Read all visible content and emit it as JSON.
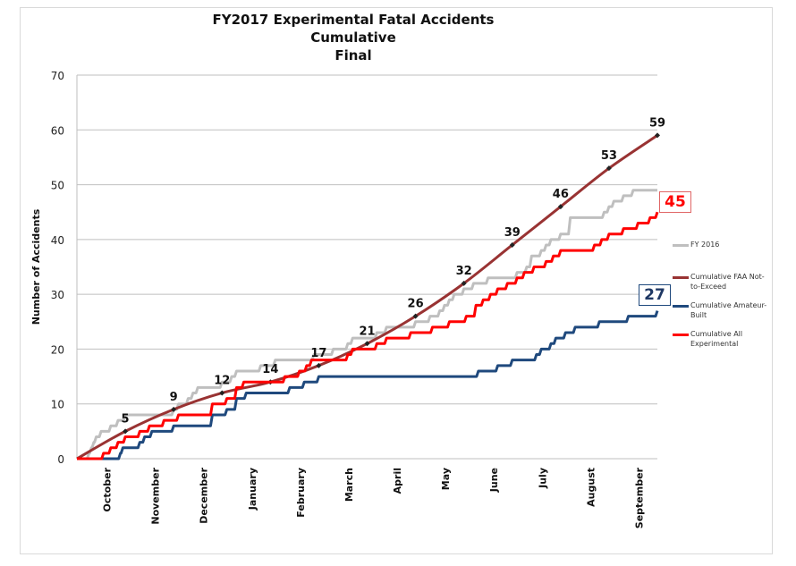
{
  "chart_data": {
    "type": "line",
    "title": [
      "FY2017 Experimental Fatal Accidents",
      "Cumulative",
      "Final"
    ],
    "xlabel": "",
    "ylabel": "Number of Accidents",
    "ylim": [
      0,
      70
    ],
    "yticks": [
      0,
      10,
      20,
      30,
      40,
      50,
      60,
      70
    ],
    "xlim_months": [
      0,
      12
    ],
    "categories": [
      "October",
      "November",
      "December",
      "January",
      "February",
      "March",
      "April",
      "May",
      "June",
      "July",
      "August",
      "September"
    ],
    "grid": "horizontal",
    "legend_position": "right",
    "series": [
      {
        "name": "FY 2016",
        "color": "#bfbfbf",
        "style": "step",
        "points": [
          [
            0,
            0
          ],
          [
            0.25,
            1
          ],
          [
            0.3,
            2
          ],
          [
            0.35,
            3
          ],
          [
            0.4,
            4
          ],
          [
            0.5,
            5
          ],
          [
            0.7,
            6
          ],
          [
            0.85,
            7
          ],
          [
            1.0,
            8
          ],
          [
            1.9,
            8
          ],
          [
            2.0,
            9
          ],
          [
            2.1,
            10
          ],
          [
            2.3,
            11
          ],
          [
            2.4,
            12
          ],
          [
            2.5,
            13
          ],
          [
            3.0,
            14
          ],
          [
            3.2,
            15
          ],
          [
            3.3,
            16
          ],
          [
            3.8,
            17
          ],
          [
            4.1,
            18
          ],
          [
            4.9,
            19
          ],
          [
            5.3,
            20
          ],
          [
            5.6,
            21
          ],
          [
            5.7,
            22
          ],
          [
            6.2,
            23
          ],
          [
            6.4,
            24
          ],
          [
            7.0,
            25
          ],
          [
            7.3,
            26
          ],
          [
            7.5,
            27
          ],
          [
            7.6,
            28
          ],
          [
            7.7,
            29
          ],
          [
            7.8,
            30
          ],
          [
            8.0,
            31
          ],
          [
            8.2,
            32
          ],
          [
            8.5,
            33
          ],
          [
            9.1,
            34
          ],
          [
            9.3,
            35
          ],
          [
            9.4,
            37
          ],
          [
            9.6,
            38
          ],
          [
            9.7,
            39
          ],
          [
            9.8,
            40
          ],
          [
            10.0,
            41
          ],
          [
            10.2,
            44
          ],
          [
            10.9,
            45
          ],
          [
            11.0,
            46
          ],
          [
            11.1,
            47
          ],
          [
            11.3,
            48
          ],
          [
            11.5,
            49
          ],
          [
            12.0,
            49
          ]
        ]
      },
      {
        "name": "Cumulative FAA Not-to-Exceed",
        "color": "#993333",
        "style": "line",
        "markers": true,
        "points": [
          [
            0,
            0
          ],
          [
            1,
            5
          ],
          [
            2,
            9
          ],
          [
            3,
            12
          ],
          [
            4,
            14
          ],
          [
            5,
            17
          ],
          [
            6,
            21
          ],
          [
            7,
            26
          ],
          [
            8,
            32
          ],
          [
            9,
            39
          ],
          [
            10,
            46
          ],
          [
            11,
            53
          ],
          [
            12,
            59
          ]
        ],
        "data_labels": [
          "5",
          "9",
          "12",
          "14",
          "17",
          "21",
          "26",
          "32",
          "39",
          "46",
          "53",
          "59"
        ]
      },
      {
        "name": "Cumulative Amateur-Built",
        "color": "#1f497d",
        "style": "step",
        "points": [
          [
            0,
            0
          ],
          [
            0.9,
            1
          ],
          [
            0.95,
            2
          ],
          [
            1.3,
            3
          ],
          [
            1.4,
            4
          ],
          [
            1.55,
            5
          ],
          [
            2.0,
            6
          ],
          [
            2.8,
            8
          ],
          [
            3.1,
            9
          ],
          [
            3.3,
            11
          ],
          [
            3.5,
            12
          ],
          [
            4.4,
            13
          ],
          [
            4.7,
            14
          ],
          [
            5.0,
            15
          ],
          [
            8.3,
            16
          ],
          [
            8.7,
            17
          ],
          [
            9.0,
            18
          ],
          [
            9.5,
            19
          ],
          [
            9.6,
            20
          ],
          [
            9.8,
            21
          ],
          [
            9.9,
            22
          ],
          [
            10.1,
            23
          ],
          [
            10.3,
            24
          ],
          [
            10.8,
            25
          ],
          [
            11.4,
            26
          ],
          [
            12.0,
            27
          ]
        ],
        "end_label": "27"
      },
      {
        "name": "Cumulative All Experimental",
        "color": "#ff0000",
        "style": "step",
        "points": [
          [
            0,
            0
          ],
          [
            0.55,
            1
          ],
          [
            0.7,
            2
          ],
          [
            0.85,
            3
          ],
          [
            1.0,
            4
          ],
          [
            1.3,
            5
          ],
          [
            1.5,
            6
          ],
          [
            1.8,
            7
          ],
          [
            2.1,
            8
          ],
          [
            2.8,
            10
          ],
          [
            3.1,
            11
          ],
          [
            3.3,
            13
          ],
          [
            3.45,
            14
          ],
          [
            4.3,
            15
          ],
          [
            4.6,
            16
          ],
          [
            4.75,
            17
          ],
          [
            4.85,
            18
          ],
          [
            5.5,
            18
          ],
          [
            5.6,
            19
          ],
          [
            5.7,
            20
          ],
          [
            6.2,
            21
          ],
          [
            6.4,
            22
          ],
          [
            6.9,
            23
          ],
          [
            7.35,
            24
          ],
          [
            7.7,
            25
          ],
          [
            8.05,
            26
          ],
          [
            8.25,
            28
          ],
          [
            8.4,
            29
          ],
          [
            8.55,
            30
          ],
          [
            8.7,
            31
          ],
          [
            8.9,
            32
          ],
          [
            9.1,
            33
          ],
          [
            9.25,
            34
          ],
          [
            9.45,
            35
          ],
          [
            9.7,
            36
          ],
          [
            9.85,
            37
          ],
          [
            10.0,
            38
          ],
          [
            10.7,
            39
          ],
          [
            10.85,
            40
          ],
          [
            11.0,
            41
          ],
          [
            11.3,
            42
          ],
          [
            11.6,
            43
          ],
          [
            11.85,
            44
          ],
          [
            12.0,
            45
          ]
        ],
        "end_label": "45"
      }
    ]
  }
}
